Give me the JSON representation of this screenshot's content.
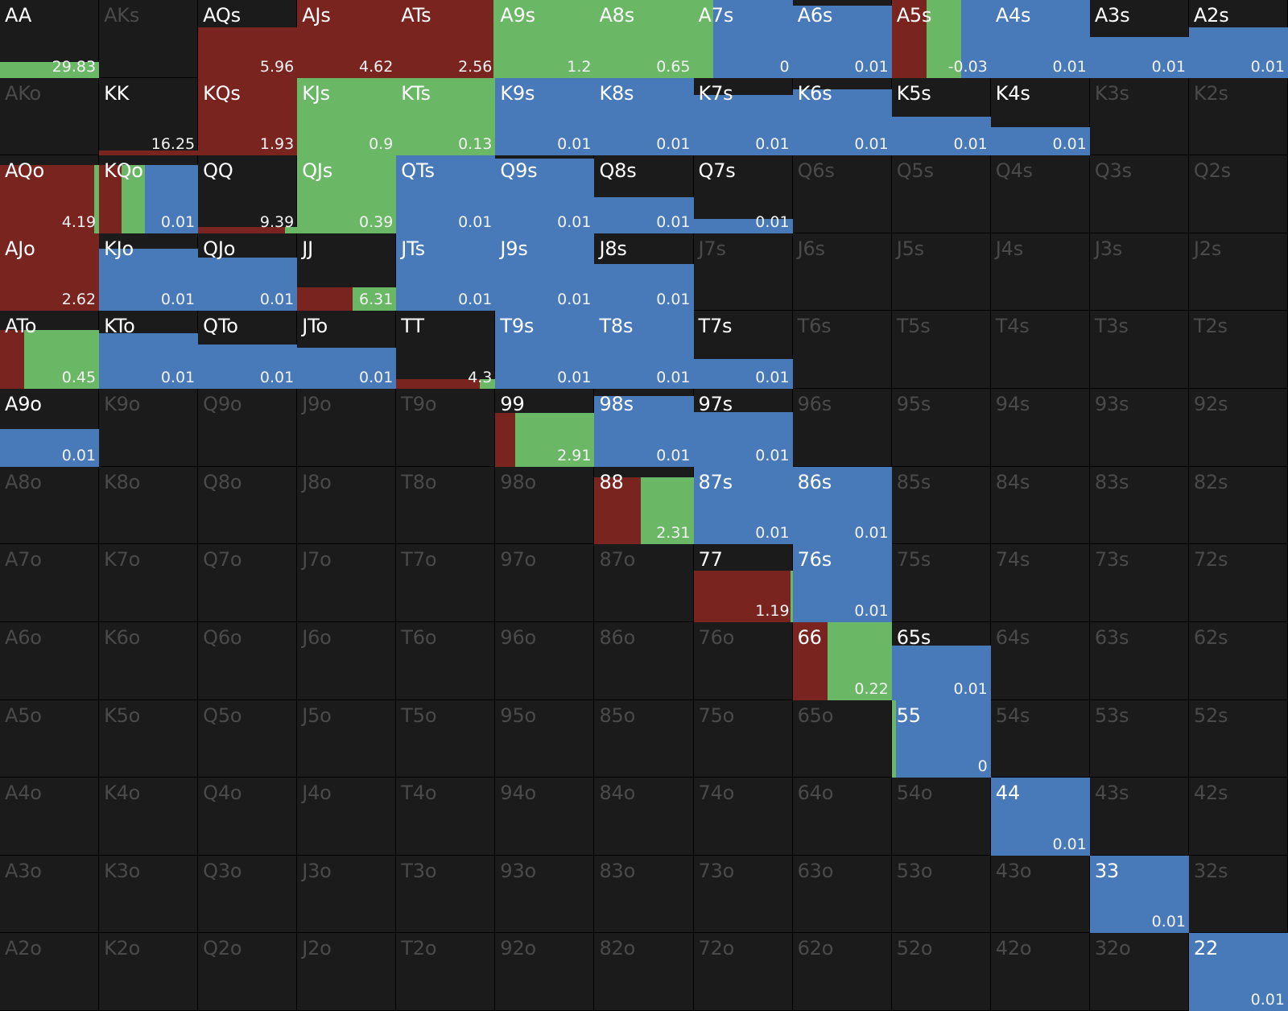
{
  "colors": {
    "background": "#1b1b1b",
    "raise": "#7a2420",
    "call": "#6ab766",
    "fold": "#4879b8",
    "label_active": "#ffffff",
    "label_inactive": "#4a4a4a",
    "value_text": "#f2f2f2"
  },
  "grid": {
    "rows": [
      [
        "AA",
        "AKs",
        "AQs",
        "AJs",
        "ATs",
        "A9s",
        "A8s",
        "A7s",
        "A6s",
        "A5s",
        "A4s",
        "A3s",
        "A2s"
      ],
      [
        "AKo",
        "KK",
        "KQs",
        "KJs",
        "KTs",
        "K9s",
        "K8s",
        "K7s",
        "K6s",
        "K5s",
        "K4s",
        "K3s",
        "K2s"
      ],
      [
        "AQo",
        "KQo",
        "QQ",
        "QJs",
        "QTs",
        "Q9s",
        "Q8s",
        "Q7s",
        "Q6s",
        "Q5s",
        "Q4s",
        "Q3s",
        "Q2s"
      ],
      [
        "AJo",
        "KJo",
        "QJo",
        "JJ",
        "JTs",
        "J9s",
        "J8s",
        "J7s",
        "J6s",
        "J5s",
        "J4s",
        "J3s",
        "J2s"
      ],
      [
        "ATo",
        "KTo",
        "QTo",
        "JTo",
        "TT",
        "T9s",
        "T8s",
        "T7s",
        "T6s",
        "T5s",
        "T4s",
        "T3s",
        "T2s"
      ],
      [
        "A9o",
        "K9o",
        "Q9o",
        "J9o",
        "T9o",
        "99",
        "98s",
        "97s",
        "96s",
        "95s",
        "94s",
        "93s",
        "92s"
      ],
      [
        "A8o",
        "K8o",
        "Q8o",
        "J8o",
        "T8o",
        "98o",
        "88",
        "87s",
        "86s",
        "85s",
        "84s",
        "83s",
        "82s"
      ],
      [
        "A7o",
        "K7o",
        "Q7o",
        "J7o",
        "T7o",
        "97o",
        "87o",
        "77",
        "76s",
        "75s",
        "74s",
        "73s",
        "72s"
      ],
      [
        "A6o",
        "K6o",
        "Q6o",
        "J6o",
        "T6o",
        "96o",
        "86o",
        "76o",
        "66",
        "65s",
        "64s",
        "63s",
        "62s"
      ],
      [
        "A5o",
        "K5o",
        "Q5o",
        "J5o",
        "T5o",
        "95o",
        "85o",
        "75o",
        "65o",
        "55",
        "54s",
        "53s",
        "52s"
      ],
      [
        "A4o",
        "K4o",
        "Q4o",
        "J4o",
        "T4o",
        "94o",
        "84o",
        "74o",
        "64o",
        "54o",
        "44",
        "43s",
        "42s"
      ],
      [
        "A3o",
        "K3o",
        "Q3o",
        "J3o",
        "T3o",
        "93o",
        "83o",
        "73o",
        "63o",
        "53o",
        "43o",
        "33",
        "32s"
      ],
      [
        "A2o",
        "K2o",
        "Q2o",
        "J2o",
        "T2o",
        "92o",
        "82o",
        "72o",
        "62o",
        "52o",
        "42o",
        "32o",
        "22"
      ]
    ]
  },
  "hands": {
    "AA": {
      "value": "29.83",
      "fill": 0.2,
      "mix": [
        0,
        1.0,
        0
      ]
    },
    "AQs": {
      "value": "5.96",
      "fill": 0.65,
      "mix": [
        1.0,
        0,
        0
      ]
    },
    "AJs": {
      "value": "4.62",
      "fill": 1.0,
      "mix": [
        1.0,
        0,
        0
      ]
    },
    "ATs": {
      "value": "2.56",
      "fill": 1.0,
      "mix": [
        0.98,
        0.02,
        0
      ]
    },
    "A9s": {
      "value": "1.2",
      "fill": 1.0,
      "mix": [
        0,
        1.0,
        0
      ]
    },
    "A8s": {
      "value": "0.65",
      "fill": 1.0,
      "mix": [
        0,
        1.0,
        0
      ]
    },
    "A7s": {
      "value": "0",
      "fill": 1.0,
      "mix": [
        0,
        0.2,
        0.8
      ]
    },
    "A6s": {
      "value": "0.01",
      "fill": 0.93,
      "mix": [
        0,
        0,
        1.0
      ]
    },
    "A5s": {
      "value": "-0.03",
      "fill": 1.0,
      "mix": [
        0.35,
        0.35,
        0.3
      ]
    },
    "A4s": {
      "value": "0.01",
      "fill": 1.0,
      "mix": [
        0,
        0,
        1.0
      ]
    },
    "A3s": {
      "value": "0.01",
      "fill": 0.52,
      "mix": [
        0,
        0,
        1.0
      ]
    },
    "A2s": {
      "value": "0.01",
      "fill": 0.65,
      "mix": [
        0,
        0,
        1.0
      ]
    },
    "KK": {
      "value": "16.25",
      "fill": 0.06,
      "mix": [
        1.0,
        0,
        0
      ]
    },
    "KQs": {
      "value": "1.93",
      "fill": 1.0,
      "mix": [
        1.0,
        0,
        0
      ]
    },
    "KJs": {
      "value": "0.9",
      "fill": 1.0,
      "mix": [
        0,
        1.0,
        0
      ]
    },
    "KTs": {
      "value": "0.13",
      "fill": 1.0,
      "mix": [
        0,
        1.0,
        0
      ]
    },
    "K9s": {
      "value": "0.01",
      "fill": 1.0,
      "mix": [
        0,
        0,
        1.0
      ]
    },
    "K8s": {
      "value": "0.01",
      "fill": 1.0,
      "mix": [
        0,
        0,
        1.0
      ]
    },
    "K7s": {
      "value": "0.01",
      "fill": 0.78,
      "mix": [
        0,
        0,
        1.0
      ]
    },
    "K6s": {
      "value": "0.01",
      "fill": 0.85,
      "mix": [
        0,
        0,
        1.0
      ]
    },
    "K5s": {
      "value": "0.01",
      "fill": 0.5,
      "mix": [
        0,
        0,
        1.0
      ]
    },
    "K4s": {
      "value": "0.01",
      "fill": 0.36,
      "mix": [
        0,
        0,
        1.0
      ]
    },
    "AQo": {
      "value": "4.19",
      "fill": 0.88,
      "mix": [
        0.95,
        0.05,
        0
      ]
    },
    "KQo": {
      "value": "0.01",
      "fill": 0.88,
      "mix": [
        0.23,
        0.23,
        0.54
      ]
    },
    "QQ": {
      "value": "9.39",
      "fill": 0.08,
      "mix": [
        0.88,
        0.12,
        0
      ]
    },
    "QJs": {
      "value": "0.39",
      "fill": 1.0,
      "mix": [
        0,
        1.0,
        0
      ]
    },
    "QTs": {
      "value": "0.01",
      "fill": 1.0,
      "mix": [
        0,
        0,
        1.0
      ]
    },
    "Q9s": {
      "value": "0.01",
      "fill": 0.96,
      "mix": [
        0,
        0,
        1.0
      ]
    },
    "Q8s": {
      "value": "0.01",
      "fill": 0.46,
      "mix": [
        0,
        0,
        1.0
      ]
    },
    "Q7s": {
      "value": "0.01",
      "fill": 0.18,
      "mix": [
        0,
        0,
        1.0
      ]
    },
    "AJo": {
      "value": "2.62",
      "fill": 1.0,
      "mix": [
        1.0,
        0,
        0
      ]
    },
    "KJo": {
      "value": "0.01",
      "fill": 0.8,
      "mix": [
        0,
        0,
        1.0
      ]
    },
    "QJo": {
      "value": "0.01",
      "fill": 0.69,
      "mix": [
        0,
        0,
        1.0
      ]
    },
    "JJ": {
      "value": "6.31",
      "fill": 0.3,
      "mix": [
        0.56,
        0.44,
        0
      ]
    },
    "JTs": {
      "value": "0.01",
      "fill": 1.0,
      "mix": [
        0,
        0,
        1.0
      ]
    },
    "J9s": {
      "value": "0.01",
      "fill": 1.0,
      "mix": [
        0,
        0,
        1.0
      ]
    },
    "J8s": {
      "value": "0.01",
      "fill": 0.61,
      "mix": [
        0,
        0,
        1.0
      ]
    },
    "ATo": {
      "value": "0.45",
      "fill": 0.76,
      "mix": [
        0.24,
        0.76,
        0
      ]
    },
    "KTo": {
      "value": "0.01",
      "fill": 0.72,
      "mix": [
        0,
        0,
        1.0
      ]
    },
    "QTo": {
      "value": "0.01",
      "fill": 0.57,
      "mix": [
        0,
        0,
        1.0
      ]
    },
    "JTo": {
      "value": "0.01",
      "fill": 0.53,
      "mix": [
        0,
        0,
        1.0
      ]
    },
    "TT": {
      "value": "4.3",
      "fill": 0.12,
      "mix": [
        0.84,
        0.16,
        0
      ]
    },
    "T9s": {
      "value": "0.01",
      "fill": 1.0,
      "mix": [
        0,
        0,
        1.0
      ]
    },
    "T8s": {
      "value": "0.01",
      "fill": 1.0,
      "mix": [
        0,
        0,
        1.0
      ]
    },
    "T7s": {
      "value": "0.01",
      "fill": 0.38,
      "mix": [
        0,
        0,
        1.0
      ]
    },
    "A9o": {
      "value": "0.01",
      "fill": 0.48,
      "mix": [
        0,
        0,
        1.0
      ]
    },
    "99": {
      "value": "2.91",
      "fill": 0.69,
      "mix": [
        0.2,
        0.8,
        0
      ]
    },
    "98s": {
      "value": "0.01",
      "fill": 0.91,
      "mix": [
        0,
        0,
        1.0
      ]
    },
    "97s": {
      "value": "0.01",
      "fill": 0.7,
      "mix": [
        0,
        0,
        1.0
      ]
    },
    "88": {
      "value": "2.31",
      "fill": 0.86,
      "mix": [
        0.47,
        0.53,
        0
      ]
    },
    "87s": {
      "value": "0.01",
      "fill": 1.0,
      "mix": [
        0,
        0,
        1.0
      ]
    },
    "86s": {
      "value": "0.01",
      "fill": 1.0,
      "mix": [
        0,
        0,
        1.0
      ]
    },
    "77": {
      "value": "1.19",
      "fill": 0.66,
      "mix": [
        0.98,
        0.02,
        0
      ]
    },
    "76s": {
      "value": "0.01",
      "fill": 1.0,
      "mix": [
        0,
        0,
        1.0
      ]
    },
    "66": {
      "value": "0.22",
      "fill": 1.0,
      "mix": [
        0.35,
        0.65,
        0
      ]
    },
    "65s": {
      "value": "0.01",
      "fill": 0.7,
      "mix": [
        0,
        0,
        1.0
      ]
    },
    "55": {
      "value": "0",
      "fill": 1.0,
      "mix": [
        0,
        0.04,
        0.96
      ]
    },
    "44": {
      "value": "0.01",
      "fill": 1.0,
      "mix": [
        0,
        0,
        1.0
      ]
    },
    "33": {
      "value": "0.01",
      "fill": 1.0,
      "mix": [
        0,
        0,
        1.0
      ]
    },
    "22": {
      "value": "0.01",
      "fill": 1.0,
      "mix": [
        0,
        0,
        1.0
      ]
    }
  }
}
